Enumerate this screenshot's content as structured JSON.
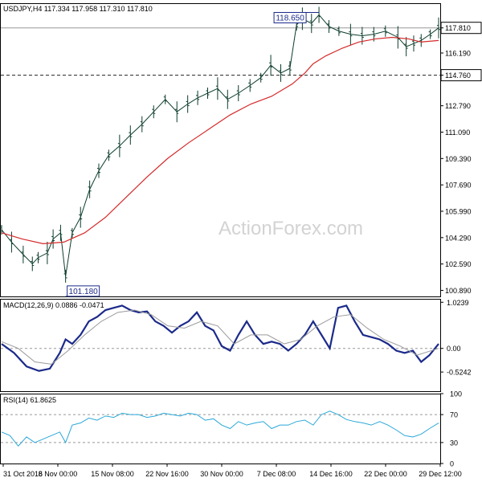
{
  "chart_data": {
    "type": "line",
    "x_ticks": [
      "31 Oct 2016",
      "8 Nov 00:00",
      "15 Nov 08:00",
      "22 Nov 16:00",
      "30 Nov 00:00",
      "7 Dec 08:00",
      "14 Dec 16:00",
      "22 Dec 00:00",
      "29 Dec 12:00"
    ],
    "watermark": "ActionForex.com",
    "price_panel": {
      "title": "USDJPY,H4  117.334 117.958 117.310 117.810",
      "y_ticks": [
        "117.810",
        "116.190",
        "114.760",
        "112.790",
        "111.090",
        "109.390",
        "107.690",
        "105.990",
        "104.290",
        "102.590",
        "100.890"
      ],
      "ylim": [
        100.5,
        119.4
      ],
      "levels": [
        {
          "value": 117.81,
          "label": "117.810",
          "style": "solid"
        },
        {
          "value": 114.76,
          "label": "114.760",
          "style": "dashed"
        }
      ],
      "annotations": [
        {
          "label": "118.650",
          "value": 118.65,
          "x": 38.2
        },
        {
          "label": "101.180",
          "value": 101.18,
          "x": 7.7
        }
      ],
      "series": [
        {
          "type": "ohlc",
          "color": "#0d3d2c",
          "x": [
            0,
            1.2,
            2.6,
            3.7,
            4.4,
            5.5,
            6.2,
            7.1,
            7.7,
            8.5,
            9.5,
            10.6,
            11.7,
            12.9,
            14.2,
            15.5,
            16.9,
            18.3,
            19.7,
            21.1,
            22.4,
            23.6,
            24.8,
            26.0,
            27.2,
            28.5,
            29.9,
            31.2,
            32.4,
            33.6,
            34.7,
            35.5,
            36.2,
            37.3,
            38.2,
            39.4,
            40.6,
            42.0,
            43.4,
            44.8,
            46.2,
            47.7,
            48.7,
            49.6,
            50.5,
            51.6,
            52.6
          ],
          "values": [
            104.8,
            104.0,
            103.2,
            102.6,
            103.0,
            103.3,
            104.2,
            104.6,
            101.8,
            104.6,
            105.6,
            107.4,
            108.6,
            109.6,
            110.2,
            110.9,
            111.6,
            112.4,
            113.2,
            112.4,
            112.9,
            113.3,
            113.6,
            113.9,
            113.2,
            113.6,
            114.1,
            114.6,
            115.4,
            114.9,
            115.2,
            118.0,
            118.4,
            118.1,
            118.65,
            117.9,
            117.6,
            117.4,
            117.3,
            117.4,
            117.6,
            117.2,
            116.6,
            116.8,
            117.0,
            117.4,
            117.81
          ]
        },
        {
          "type": "line",
          "color": "#d42a2a",
          "x": [
            0,
            2.5,
            5,
            7.5,
            10,
            12.5,
            15,
            17.5,
            20,
            22.5,
            25,
            27.5,
            30,
            32.5,
            35,
            36.5,
            37.5,
            39,
            41,
            43,
            45,
            47,
            49,
            50.5,
            52.6
          ],
          "values": [
            104.6,
            104.2,
            103.9,
            104.0,
            104.6,
            105.6,
            106.9,
            108.2,
            109.4,
            110.4,
            111.3,
            112.2,
            112.9,
            113.4,
            114.2,
            114.9,
            115.5,
            116.0,
            116.5,
            116.9,
            117.1,
            117.2,
            117.1,
            116.9,
            117.0
          ]
        }
      ]
    },
    "macd_panel": {
      "title": "MACD(12,26,9) 0.0886 -0.0471",
      "y_ticks": [
        "1.0239",
        "0.00",
        "-0.5242"
      ],
      "ylim": [
        -0.95,
        1.1
      ],
      "zero_line": 0,
      "series": [
        {
          "name": "MACD",
          "color": "#1b2a8a",
          "x": [
            0,
            1.5,
            3,
            4.5,
            5.8,
            7,
            7.7,
            8.5,
            9.5,
            10.5,
            11.5,
            12.5,
            13.5,
            14.5,
            15.5,
            16.5,
            17.5,
            18.5,
            19.5,
            20.5,
            21.5,
            22.5,
            23.5,
            24.5,
            25.5,
            26.5,
            27.5,
            28.5,
            29.5,
            30.5,
            31.5,
            32.5,
            33.5,
            34.5,
            35.5,
            36.5,
            37.5,
            38.5,
            39.5,
            40.5,
            41.5,
            42.5,
            43.5,
            44.5,
            45.5,
            46.5,
            47.5,
            48.5,
            49.5,
            50.5,
            51.5,
            52.6
          ],
          "values": [
            0.1,
            -0.1,
            -0.4,
            -0.5,
            -0.45,
            -0.1,
            0.2,
            0.1,
            0.3,
            0.6,
            0.7,
            0.85,
            0.9,
            0.95,
            0.85,
            0.8,
            0.82,
            0.6,
            0.5,
            0.35,
            0.5,
            0.6,
            0.8,
            0.5,
            0.4,
            0.05,
            -0.05,
            0.3,
            0.6,
            0.3,
            0.1,
            0.15,
            0.1,
            -0.05,
            0.1,
            0.3,
            0.6,
            0.3,
            0.0,
            0.9,
            0.95,
            0.6,
            0.3,
            0.25,
            0.2,
            0.1,
            -0.05,
            -0.1,
            -0.05,
            -0.3,
            -0.15,
            0.1
          ]
        },
        {
          "name": "Signal",
          "color": "#9a9a9a",
          "x": [
            0,
            2,
            4,
            6,
            8,
            10,
            12,
            14,
            16,
            18,
            20,
            22,
            24,
            26,
            28,
            30,
            32,
            34,
            36,
            38,
            40,
            42,
            44,
            46,
            48,
            50,
            52.6
          ],
          "values": [
            0.15,
            0.0,
            -0.3,
            -0.35,
            -0.05,
            0.3,
            0.6,
            0.8,
            0.85,
            0.75,
            0.5,
            0.45,
            0.6,
            0.5,
            0.1,
            0.3,
            0.3,
            0.1,
            0.2,
            0.5,
            0.7,
            0.75,
            0.45,
            0.2,
            0.05,
            -0.15,
            0.0
          ]
        }
      ]
    },
    "rsi_panel": {
      "title": "RSI(14) 61.8625",
      "y_ticks": [
        "100",
        "70",
        "30",
        "0"
      ],
      "ylim": [
        0,
        100
      ],
      "levels": [
        70,
        30
      ],
      "series": [
        {
          "name": "RSI",
          "color": "#2aa8d8",
          "x": [
            0,
            1,
            2,
            3,
            4,
            5,
            6,
            7,
            7.7,
            8.5,
            9.5,
            10.5,
            11.5,
            12.5,
            13.5,
            14.5,
            15.5,
            16.5,
            17.5,
            18.5,
            19.5,
            20.5,
            21.5,
            22.5,
            23.5,
            24.5,
            25.5,
            26.5,
            27.5,
            28.5,
            29.5,
            30.5,
            31.5,
            32.5,
            33.5,
            34.5,
            35.5,
            36.5,
            37.5,
            38.5,
            39.5,
            40.5,
            41.5,
            42.5,
            43.5,
            44.5,
            45.5,
            46.5,
            47.5,
            48.5,
            49.5,
            50.5,
            51.5,
            52.6
          ],
          "values": [
            45,
            40,
            25,
            38,
            30,
            35,
            40,
            45,
            30,
            55,
            58,
            65,
            62,
            68,
            66,
            72,
            70,
            70,
            66,
            68,
            72,
            70,
            68,
            72,
            70,
            62,
            64,
            55,
            50,
            60,
            55,
            58,
            60,
            50,
            55,
            55,
            60,
            62,
            55,
            70,
            75,
            70,
            63,
            60,
            58,
            55,
            60,
            55,
            48,
            40,
            38,
            42,
            50,
            58
          ]
        }
      ]
    }
  }
}
